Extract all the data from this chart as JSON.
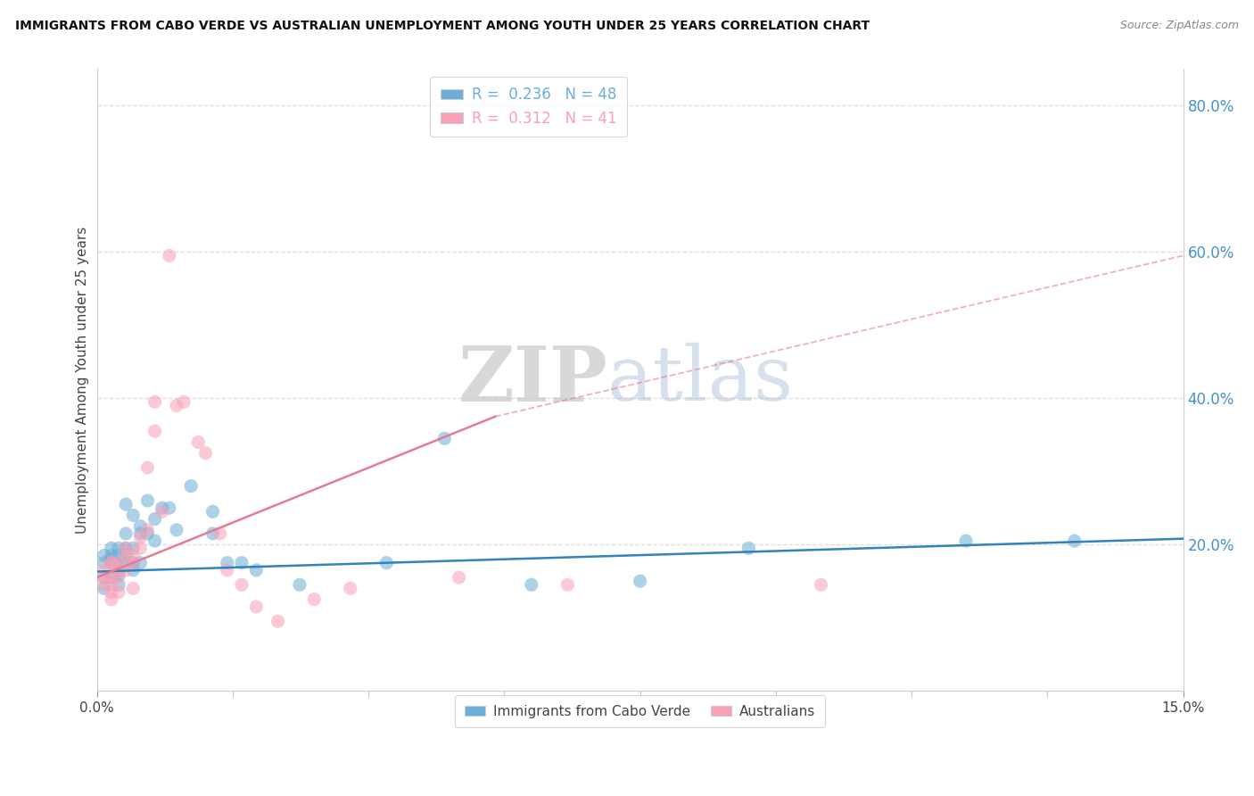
{
  "title": "IMMIGRANTS FROM CABO VERDE VS AUSTRALIAN UNEMPLOYMENT AMONG YOUTH UNDER 25 YEARS CORRELATION CHART",
  "source": "Source: ZipAtlas.com",
  "ylabel": "Unemployment Among Youth under 25 years",
  "xlim": [
    0.0,
    0.15
  ],
  "ylim": [
    0.0,
    0.85
  ],
  "ytick_positions": [
    0.2,
    0.4,
    0.6,
    0.8
  ],
  "ytick_labels": [
    "20.0%",
    "40.0%",
    "60.0%",
    "80.0%"
  ],
  "legend_entries": [
    {
      "label_r": "R = ",
      "r_val": "0.236",
      "label_n": "  N = ",
      "n_val": "48",
      "color": "#6baed6"
    },
    {
      "label_r": "R = ",
      "r_val": "0.312",
      "label_n": "  N = ",
      "n_val": "41",
      "color": "#fa9fb5"
    }
  ],
  "series_cabo_verde": {
    "color": "#6baed6",
    "alpha": 0.55,
    "x": [
      0.001,
      0.001,
      0.001,
      0.001,
      0.002,
      0.002,
      0.002,
      0.002,
      0.002,
      0.003,
      0.003,
      0.003,
      0.003,
      0.003,
      0.003,
      0.004,
      0.004,
      0.004,
      0.004,
      0.004,
      0.005,
      0.005,
      0.005,
      0.005,
      0.006,
      0.006,
      0.006,
      0.007,
      0.007,
      0.008,
      0.008,
      0.009,
      0.01,
      0.011,
      0.013,
      0.016,
      0.016,
      0.018,
      0.02,
      0.022,
      0.028,
      0.04,
      0.048,
      0.06,
      0.075,
      0.09,
      0.12,
      0.135
    ],
    "y": [
      0.175,
      0.185,
      0.155,
      0.14,
      0.175,
      0.18,
      0.185,
      0.195,
      0.155,
      0.165,
      0.175,
      0.185,
      0.145,
      0.16,
      0.195,
      0.175,
      0.195,
      0.215,
      0.185,
      0.255,
      0.175,
      0.165,
      0.195,
      0.24,
      0.215,
      0.175,
      0.225,
      0.26,
      0.215,
      0.235,
      0.205,
      0.25,
      0.25,
      0.22,
      0.28,
      0.245,
      0.215,
      0.175,
      0.175,
      0.165,
      0.145,
      0.175,
      0.345,
      0.145,
      0.15,
      0.195,
      0.205,
      0.205
    ]
  },
  "series_australians": {
    "color": "#fa9fb5",
    "alpha": 0.55,
    "x": [
      0.001,
      0.001,
      0.001,
      0.002,
      0.002,
      0.002,
      0.002,
      0.002,
      0.002,
      0.003,
      0.003,
      0.003,
      0.003,
      0.004,
      0.004,
      0.004,
      0.005,
      0.005,
      0.005,
      0.006,
      0.006,
      0.007,
      0.007,
      0.008,
      0.008,
      0.009,
      0.01,
      0.011,
      0.012,
      0.014,
      0.015,
      0.017,
      0.018,
      0.02,
      0.022,
      0.025,
      0.03,
      0.035,
      0.05,
      0.065,
      0.1
    ],
    "y": [
      0.165,
      0.155,
      0.145,
      0.175,
      0.175,
      0.155,
      0.145,
      0.135,
      0.125,
      0.175,
      0.165,
      0.155,
      0.135,
      0.185,
      0.195,
      0.165,
      0.185,
      0.175,
      0.14,
      0.21,
      0.195,
      0.22,
      0.305,
      0.355,
      0.395,
      0.245,
      0.595,
      0.39,
      0.395,
      0.34,
      0.325,
      0.215,
      0.165,
      0.145,
      0.115,
      0.095,
      0.125,
      0.14,
      0.155,
      0.145,
      0.145
    ]
  },
  "trend_cabo_verde_solid": {
    "color": "#3182bd",
    "x": [
      0.0,
      0.15
    ],
    "y": [
      0.163,
      0.208
    ],
    "linestyle": "-",
    "linewidth": 1.8
  },
  "trend_australians_solid": {
    "color": "#e77a96",
    "x": [
      0.0,
      0.055
    ],
    "y": [
      0.155,
      0.375
    ],
    "linestyle": "-",
    "linewidth": 1.8
  },
  "trend_australians_dashed": {
    "color": "#e77a96",
    "x": [
      0.055,
      0.15
    ],
    "y": [
      0.375,
      0.595
    ],
    "linestyle": "--",
    "linewidth": 1.3
  },
  "watermark_zip": "ZIP",
  "watermark_atlas": "atlas",
  "background_color": "#ffffff",
  "grid_color": "#dddddd",
  "bottom_legend": [
    {
      "label": "Immigrants from Cabo Verde",
      "color": "#6baed6"
    },
    {
      "label": "Australians",
      "color": "#fa9fb5"
    }
  ]
}
